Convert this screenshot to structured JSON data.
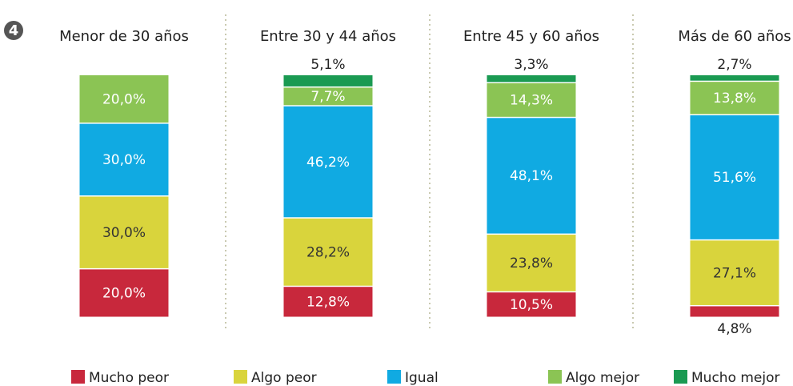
{
  "chart_data": {
    "type": "bar",
    "stacked": true,
    "figure_number": "4",
    "categories": [
      "Menor de 30 años",
      "Entre 30 y 44 años",
      "Entre 45 y 60 años",
      "Más de 60 años"
    ],
    "ylim": [
      0,
      100
    ],
    "series": [
      {
        "name": "Mucho peor",
        "color": "#c8283c",
        "values": [
          20.0,
          12.8,
          10.5,
          4.8
        ],
        "value_labels": [
          "20,0%",
          "12,8%",
          "10,5%",
          "4,8%"
        ]
      },
      {
        "name": "Algo peor",
        "color": "#d9d43c",
        "values": [
          30.0,
          28.2,
          23.8,
          27.1
        ],
        "value_labels": [
          "30,0%",
          "28,2%",
          "23,8%",
          "27,1%"
        ]
      },
      {
        "name": "Igual",
        "color": "#10aae2",
        "values": [
          30.0,
          46.2,
          48.1,
          51.6
        ],
        "value_labels": [
          "30,0%",
          "46,2%",
          "48,1%",
          "51,6%"
        ]
      },
      {
        "name": "Algo mejor",
        "color": "#8bc454",
        "values": [
          20.0,
          7.7,
          14.3,
          13.8
        ],
        "value_labels": [
          "20,0%",
          "7,7%",
          "14,3%",
          "13,8%"
        ]
      },
      {
        "name": "Mucho mejor",
        "color": "#1a9a52",
        "values": [
          null,
          5.1,
          3.3,
          2.7
        ],
        "value_labels": [
          null,
          "5,1%",
          "3,3%",
          "2,7%"
        ]
      }
    ],
    "legend": "bottom"
  }
}
